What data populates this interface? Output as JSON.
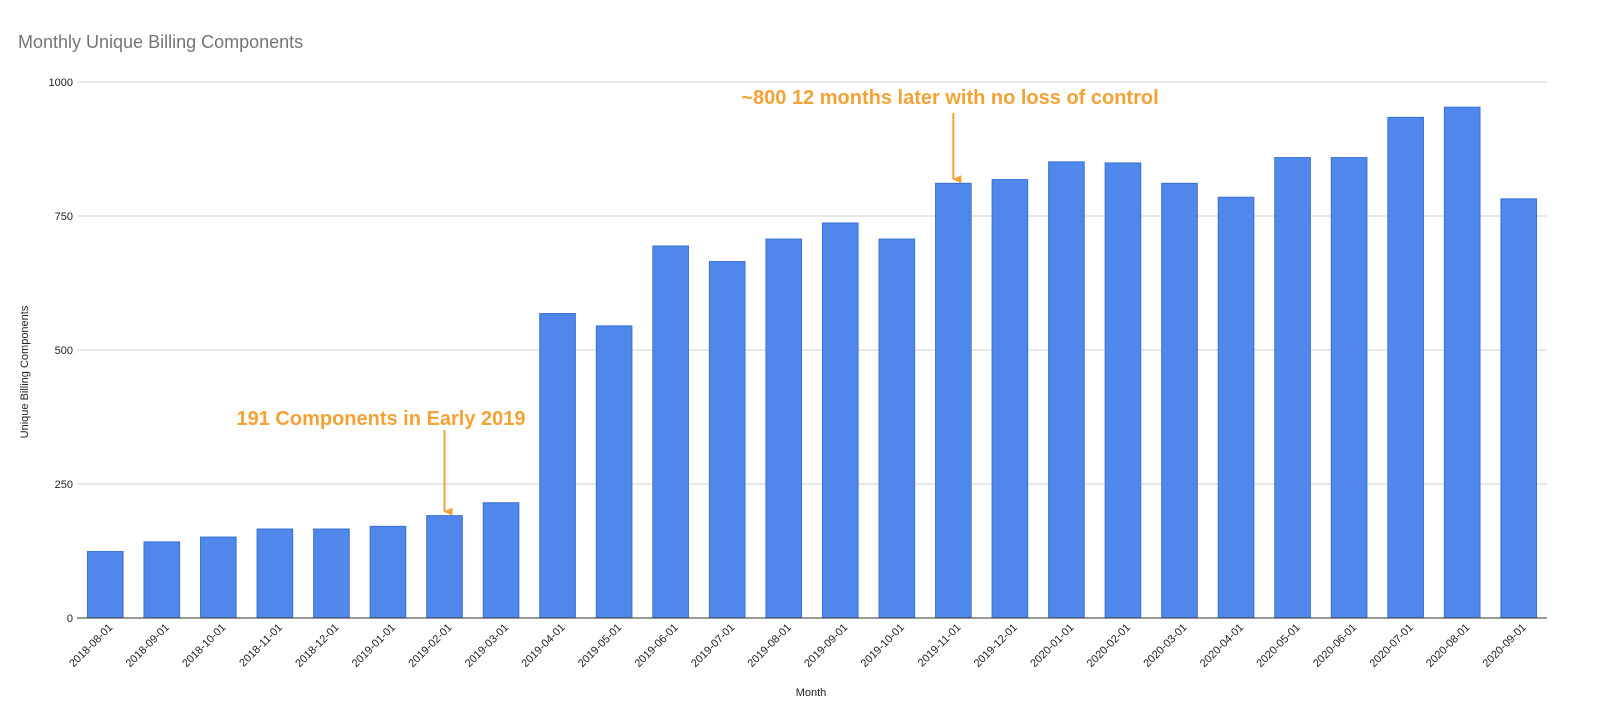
{
  "colors": {
    "bar": "#4f87ea",
    "bar_stroke": "#3a70d4",
    "annotation": "#f4a236",
    "title": "#757575",
    "gridline": "#d0d0d0"
  },
  "chart_data": {
    "type": "bar",
    "title": "Monthly Unique Billing Components",
    "xlabel": "Month",
    "ylabel": "Unique Billing Components",
    "ylim": [
      0,
      1000
    ],
    "yticks": [
      0,
      250,
      500,
      750,
      1000
    ],
    "grid": true,
    "legend": "none",
    "categories": [
      "2018-08-01",
      "2018-09-01",
      "2018-10-01",
      "2018-11-01",
      "2018-12-01",
      "2019-01-01",
      "2019-02-01",
      "2019-03-01",
      "2019-04-01",
      "2019-05-01",
      "2019-06-01",
      "2019-07-01",
      "2019-08-01",
      "2019-09-01",
      "2019-10-01",
      "2019-11-01",
      "2019-12-01",
      "2020-01-01",
      "2020-02-01",
      "2020-03-01",
      "2020-04-01",
      "2020-05-01",
      "2020-06-01",
      "2020-07-01",
      "2020-08-01",
      "2020-09-01"
    ],
    "values": [
      124,
      142,
      151,
      166,
      166,
      171,
      191,
      215,
      568,
      545,
      694,
      665,
      707,
      737,
      707,
      811,
      818,
      851,
      849,
      811,
      785,
      859,
      859,
      934,
      953,
      782
    ],
    "annotations": [
      {
        "text": "191 Components in Early 2019",
        "category": "2019-02-01",
        "value": 191
      },
      {
        "text": "~800 12 months later with no loss of control",
        "category": "2019-11-01",
        "value": 811
      }
    ]
  }
}
